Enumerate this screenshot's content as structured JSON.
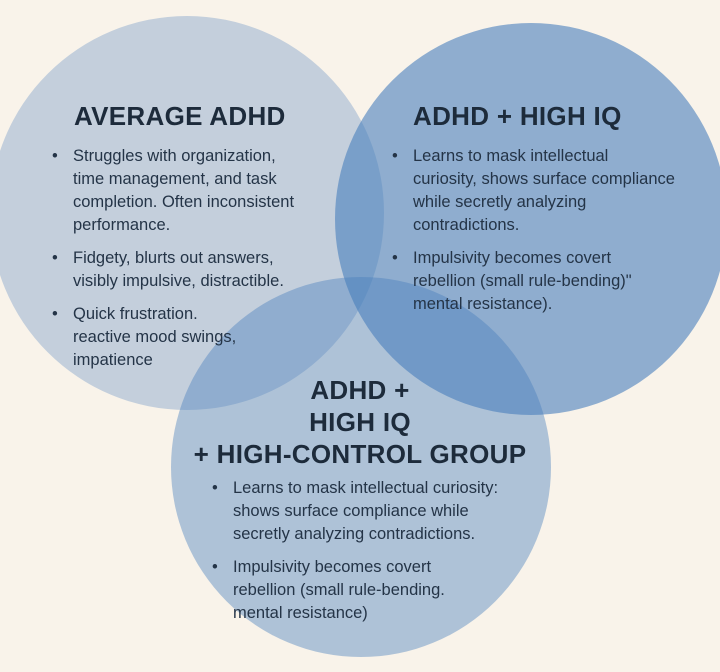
{
  "diagram": {
    "type": "venn",
    "background_color": "#f9f3ea",
    "base_circle_color": "#487EBC",
    "heading_color": "#1d2b3b",
    "body_color": "#243447",
    "circles": [
      {
        "id": "average-adhd",
        "title": "AVERAGE ADHD",
        "observed_fill": "#c5d0de",
        "alpha": 0.3,
        "bullets": [
          "Struggles with organization,\ntime management, and task\ncompletion. Often inconsistent\nperformance.",
          "Fidgety, blurts out answers,\nvisibly impulsive, distractible.",
          "Quick frustration.\nreactive mood swings,\nimpatience"
        ]
      },
      {
        "id": "adhd-high-iq",
        "title": "ADHD + HIGH IQ",
        "observed_fill": "#8fadcc",
        "alpha": 0.6,
        "bullets": [
          "Learns to mask intellectual\ncuriosity, shows surface compliance\nwhile secretly analyzing\ncontradictions.",
          "Impulsivity becomes covert\nrebellion (small rule-bending)\"\nmental resistance)."
        ]
      },
      {
        "id": "adhd-high-iq-high-control-group",
        "title": "ADHD +\nHIGH IQ\n+ HIGH-CONTROL GROUP",
        "observed_fill": "#b0c5da",
        "alpha": 0.42,
        "bullets": [
          "Learns to mask intellectual curiosity:\nshows surface compliance while\nsecretly analyzing contradictions.",
          "Impulsivity becomes covert\nrebellion (small rule-bending.\nmental resistance)"
        ]
      }
    ]
  }
}
